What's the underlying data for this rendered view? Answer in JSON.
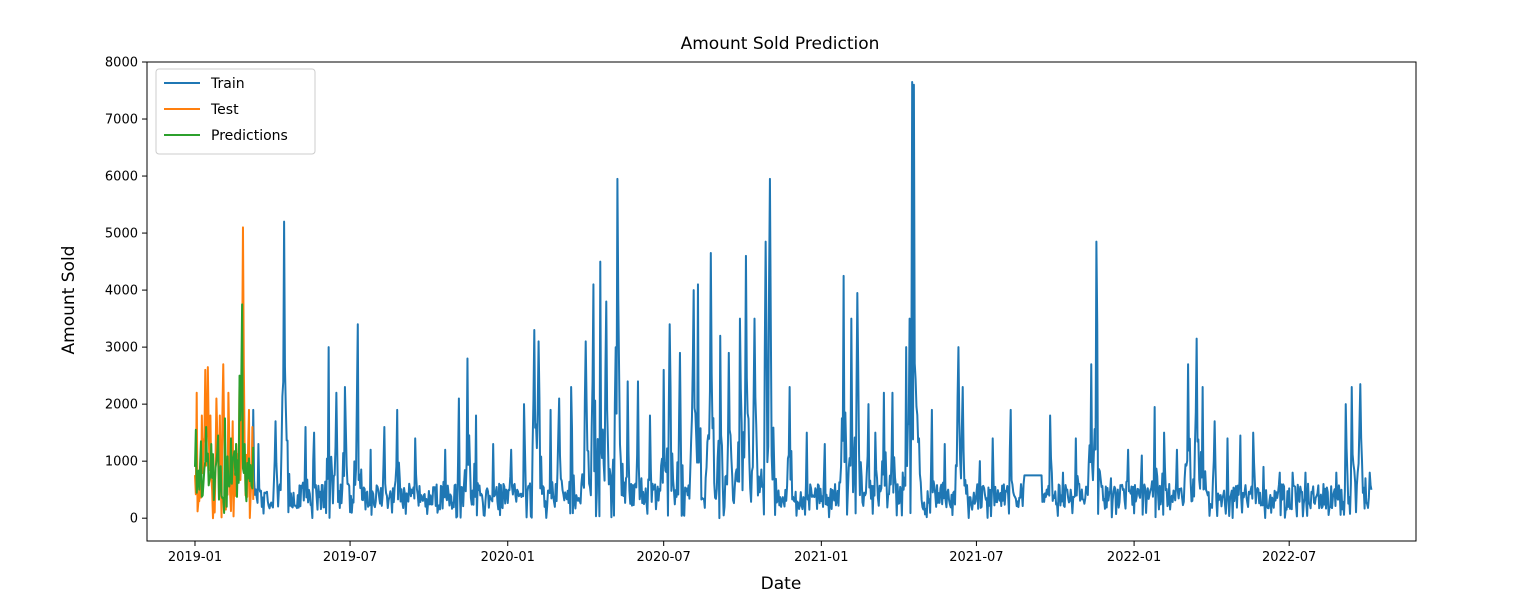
{
  "chart_data": {
    "type": "line",
    "title": "Amount Sold Prediction",
    "xlabel": "Date",
    "ylabel": "Amount Sold",
    "xlim": [
      "2018-11-06",
      "2022-11-26"
    ],
    "ylim": [
      -400,
      8000
    ],
    "x_ticks": [
      "2019-01",
      "2019-07",
      "2020-01",
      "2020-07",
      "2021-01",
      "2021-07",
      "2022-01",
      "2022-07"
    ],
    "y_ticks": [
      0,
      1000,
      2000,
      3000,
      4000,
      5000,
      6000,
      7000,
      8000
    ],
    "grid": false,
    "legend": {
      "position": "top-left"
    },
    "series": [
      {
        "name": "Train",
        "color": "#1f77b4",
        "x_start": "2019-03-08",
        "x_end": "2022-10-05",
        "baseline": 700,
        "peaks": [
          [
            "2019-03-10",
            1900
          ],
          [
            "2019-03-16",
            1300
          ],
          [
            "2019-04-05",
            1700
          ],
          [
            "2019-04-15",
            5200
          ],
          [
            "2019-05-10",
            1600
          ],
          [
            "2019-05-20",
            1500
          ],
          [
            "2019-06-06",
            3000
          ],
          [
            "2019-06-15",
            2200
          ],
          [
            "2019-06-25",
            2300
          ],
          [
            "2019-07-10",
            3400
          ],
          [
            "2019-07-25",
            1200
          ],
          [
            "2019-08-10",
            1600
          ],
          [
            "2019-08-25",
            1900
          ],
          [
            "2019-09-15",
            1400
          ],
          [
            "2019-10-20",
            1200
          ],
          [
            "2019-11-05",
            2100
          ],
          [
            "2019-11-15",
            2800
          ],
          [
            "2019-11-25",
            1800
          ],
          [
            "2019-12-15",
            1300
          ],
          [
            "2020-01-05",
            1200
          ],
          [
            "2020-01-20",
            2000
          ],
          [
            "2020-02-01",
            3300
          ],
          [
            "2020-02-06",
            3100
          ],
          [
            "2020-02-20",
            1900
          ],
          [
            "2020-03-01",
            2100
          ],
          [
            "2020-03-15",
            2300
          ],
          [
            "2020-04-01",
            3100
          ],
          [
            "2020-04-10",
            4100
          ],
          [
            "2020-04-18",
            4500
          ],
          [
            "2020-04-25",
            3800
          ],
          [
            "2020-05-08",
            5950
          ],
          [
            "2020-05-20",
            2400
          ],
          [
            "2020-06-01",
            2400
          ],
          [
            "2020-06-15",
            1800
          ],
          [
            "2020-07-01",
            2600
          ],
          [
            "2020-07-08",
            3400
          ],
          [
            "2020-07-20",
            2900
          ],
          [
            "2020-08-05",
            4000
          ],
          [
            "2020-08-10",
            4100
          ],
          [
            "2020-08-25",
            4650
          ],
          [
            "2020-09-05",
            3200
          ],
          [
            "2020-09-15",
            2900
          ],
          [
            "2020-09-28",
            3500
          ],
          [
            "2020-10-05",
            4600
          ],
          [
            "2020-10-15",
            3500
          ],
          [
            "2020-10-28",
            4850
          ],
          [
            "2020-11-02",
            5950
          ],
          [
            "2020-11-25",
            2300
          ],
          [
            "2020-12-15",
            1500
          ],
          [
            "2021-01-05",
            1300
          ],
          [
            "2021-01-27",
            4250
          ],
          [
            "2021-02-05",
            3500
          ],
          [
            "2021-02-12",
            3950
          ],
          [
            "2021-02-25",
            2000
          ],
          [
            "2021-03-05",
            1500
          ],
          [
            "2021-03-15",
            2200
          ],
          [
            "2021-03-25",
            2200
          ],
          [
            "2021-04-10",
            3000
          ],
          [
            "2021-04-14",
            3500
          ],
          [
            "2021-04-17",
            7650
          ],
          [
            "2021-04-19",
            7600
          ],
          [
            "2021-04-25",
            1400
          ],
          [
            "2021-05-10",
            1900
          ],
          [
            "2021-05-25",
            1300
          ],
          [
            "2021-06-10",
            3000
          ],
          [
            "2021-06-15",
            2300
          ],
          [
            "2021-07-05",
            1000
          ],
          [
            "2021-07-20",
            1400
          ],
          [
            "2021-08-10",
            1900
          ],
          [
            "2021-09-05",
            800
          ],
          [
            "2021-09-25",
            1800
          ],
          [
            "2021-10-10",
            800
          ],
          [
            "2021-10-25",
            1400
          ],
          [
            "2021-11-12",
            2700
          ],
          [
            "2021-11-18",
            4850
          ],
          [
            "2021-12-05",
            700
          ],
          [
            "2021-12-25",
            1200
          ],
          [
            "2022-01-10",
            1100
          ],
          [
            "2022-01-25",
            1950
          ],
          [
            "2022-02-05",
            1500
          ],
          [
            "2022-02-20",
            1200
          ],
          [
            "2022-03-05",
            2700
          ],
          [
            "2022-03-15",
            3150
          ],
          [
            "2022-03-22",
            2300
          ],
          [
            "2022-04-05",
            1700
          ],
          [
            "2022-04-20",
            1400
          ],
          [
            "2022-05-05",
            1450
          ],
          [
            "2022-05-20",
            1500
          ],
          [
            "2022-06-01",
            900
          ],
          [
            "2022-06-20",
            800
          ],
          [
            "2022-07-05",
            800
          ],
          [
            "2022-07-20",
            800
          ],
          [
            "2022-08-10",
            600
          ],
          [
            "2022-08-25",
            800
          ],
          [
            "2022-09-05",
            2000
          ],
          [
            "2022-09-12",
            2300
          ],
          [
            "2022-09-22",
            2350
          ],
          [
            "2022-09-28",
            700
          ],
          [
            "2022-10-03",
            800
          ]
        ],
        "flat_segments": [
          [
            "2021-08-26",
            "2021-09-15",
            750
          ]
        ]
      },
      {
        "name": "Test",
        "color": "#ff7f0e",
        "x_start": "2019-01-01",
        "x_end": "2019-03-10",
        "baseline": 1200,
        "peaks": [
          [
            "2019-01-03",
            2200
          ],
          [
            "2019-01-06",
            300
          ],
          [
            "2019-01-09",
            1800
          ],
          [
            "2019-01-13",
            2600
          ],
          [
            "2019-01-16",
            2650
          ],
          [
            "2019-01-19",
            1800
          ],
          [
            "2019-01-22",
            0
          ],
          [
            "2019-01-26",
            2100
          ],
          [
            "2019-01-30",
            1800
          ],
          [
            "2019-02-03",
            2700
          ],
          [
            "2019-02-06",
            150
          ],
          [
            "2019-02-09",
            2200
          ],
          [
            "2019-02-14",
            1700
          ],
          [
            "2019-02-18",
            1300
          ],
          [
            "2019-02-22",
            2400
          ],
          [
            "2019-02-26",
            5100
          ],
          [
            "2019-03-01",
            400
          ],
          [
            "2019-03-05",
            1900
          ],
          [
            "2019-03-09",
            1600
          ]
        ]
      },
      {
        "name": "Predictions",
        "color": "#2ca02c",
        "x_start": "2019-01-01",
        "x_end": "2019-03-10",
        "baseline": 1350,
        "peaks": [
          [
            "2019-01-02",
            1550
          ],
          [
            "2019-01-08",
            1350
          ],
          [
            "2019-01-14",
            1600
          ],
          [
            "2019-01-20",
            1300
          ],
          [
            "2019-01-28",
            1450
          ],
          [
            "2019-02-05",
            1750
          ],
          [
            "2019-02-12",
            1400
          ],
          [
            "2019-02-18",
            1300
          ],
          [
            "2019-02-22",
            2500
          ],
          [
            "2019-02-25",
            3750
          ],
          [
            "2019-02-28",
            1300
          ],
          [
            "2019-03-05",
            1050
          ],
          [
            "2019-03-10",
            1250
          ]
        ]
      }
    ]
  }
}
